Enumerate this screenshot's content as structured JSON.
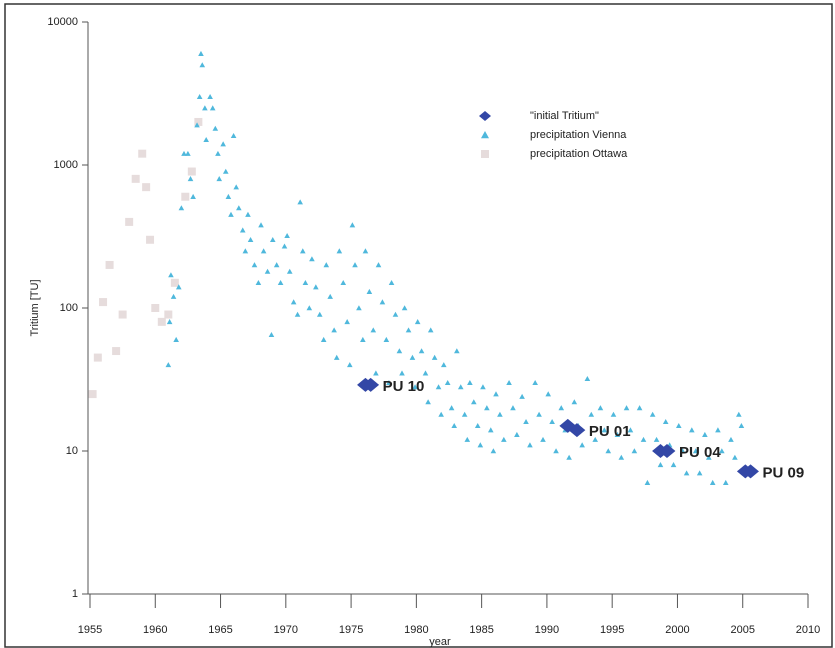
{
  "chart_data": {
    "type": "scatter",
    "xlabel": "year",
    "ylabel": "Tritium [TU]",
    "xlim": [
      1955,
      2010
    ],
    "xticks": [
      1955,
      1960,
      1965,
      1970,
      1975,
      1980,
      1985,
      1990,
      1995,
      2000,
      2005,
      2010
    ],
    "ylim": [
      1,
      10000
    ],
    "yticks": [
      1,
      10,
      100,
      1000,
      10000
    ],
    "yscale": "log",
    "series": [
      {
        "name": "\"initial Tritium\"",
        "color": "#3347a6",
        "marker": "diamond",
        "x": [
          1976.1,
          1976.5,
          1991.6,
          1992.3,
          1998.7,
          1999.2,
          2005.2,
          2005.6
        ],
        "values": [
          29,
          29,
          15,
          14,
          10,
          10,
          7.2,
          7.2
        ],
        "labels": [
          null,
          "PU 10",
          null,
          "PU 01",
          null,
          "PU 04",
          null,
          "PU 09"
        ]
      },
      {
        "name": "precipitation Vienna",
        "color": "#4fb8dc",
        "marker": "triangle",
        "x": [
          1961.0,
          1961.1,
          1961.2,
          1961.4,
          1961.6,
          1961.8,
          1962.0,
          1962.2,
          1962.5,
          1962.7,
          1962.9,
          1963.2,
          1963.4,
          1963.5,
          1963.6,
          1963.8,
          1963.9,
          1964.2,
          1964.4,
          1964.6,
          1964.8,
          1964.9,
          1965.2,
          1965.4,
          1965.6,
          1965.8,
          1966.0,
          1966.2,
          1966.4,
          1966.7,
          1966.9,
          1967.1,
          1967.3,
          1967.6,
          1967.9,
          1968.1,
          1968.3,
          1968.6,
          1968.9,
          1969.0,
          1969.3,
          1969.6,
          1969.9,
          1970.1,
          1970.3,
          1970.6,
          1970.9,
          1971.1,
          1971.3,
          1971.5,
          1971.8,
          1972.0,
          1972.3,
          1972.6,
          1972.9,
          1973.1,
          1973.4,
          1973.7,
          1973.9,
          1974.1,
          1974.4,
          1974.7,
          1974.9,
          1975.1,
          1975.3,
          1975.6,
          1975.9,
          1976.1,
          1976.4,
          1976.7,
          1976.9,
          1977.1,
          1977.4,
          1977.7,
          1977.9,
          1978.1,
          1978.4,
          1978.7,
          1978.9,
          1979.1,
          1979.4,
          1979.7,
          1979.9,
          1980.1,
          1980.4,
          1980.7,
          1980.9,
          1981.1,
          1981.4,
          1981.7,
          1981.9,
          1982.1,
          1982.4,
          1982.7,
          1982.9,
          1983.1,
          1983.4,
          1983.7,
          1983.9,
          1984.1,
          1984.4,
          1984.7,
          1984.9,
          1985.1,
          1985.4,
          1985.7,
          1985.9,
          1986.1,
          1986.4,
          1986.7,
          1987.1,
          1987.4,
          1987.7,
          1988.1,
          1988.4,
          1988.7,
          1989.1,
          1989.4,
          1989.7,
          1990.1,
          1990.4,
          1990.7,
          1991.1,
          1991.4,
          1991.7,
          1992.1,
          1992.4,
          1992.7,
          1993.1,
          1993.4,
          1993.7,
          1994.1,
          1994.4,
          1994.7,
          1995.1,
          1995.4,
          1995.7,
          1996.1,
          1996.4,
          1996.7,
          1997.1,
          1997.4,
          1997.7,
          1998.1,
          1998.4,
          1998.7,
          1999.1,
          1999.4,
          1999.7,
          2000.1,
          2000.4,
          2000.7,
          2001.1,
          2001.4,
          2001.7,
          2002.1,
          2002.4,
          2002.7,
          2003.1,
          2003.4,
          2003.7,
          2004.1,
          2004.4,
          2004.7,
          2004.9
        ],
        "values": [
          40,
          80,
          170,
          120,
          60,
          140,
          500,
          1200,
          1200,
          800,
          600,
          1900,
          3000,
          6000,
          5000,
          2500,
          1500,
          3000,
          2500,
          1800,
          1200,
          800,
          1400,
          900,
          600,
          450,
          1600,
          700,
          500,
          350,
          250,
          450,
          300,
          200,
          150,
          380,
          250,
          180,
          65,
          300,
          200,
          150,
          270,
          320,
          180,
          110,
          90,
          550,
          250,
          150,
          100,
          220,
          140,
          90,
          60,
          200,
          120,
          70,
          45,
          250,
          150,
          80,
          40,
          380,
          200,
          100,
          60,
          250,
          130,
          70,
          35,
          200,
          110,
          60,
          30,
          150,
          90,
          50,
          35,
          100,
          70,
          45,
          28,
          80,
          50,
          35,
          22,
          70,
          45,
          28,
          18,
          40,
          30,
          20,
          15,
          50,
          28,
          18,
          12,
          30,
          22,
          15,
          11,
          28,
          20,
          14,
          10,
          25,
          18,
          12,
          30,
          20,
          13,
          24,
          16,
          11,
          30,
          18,
          12,
          25,
          16,
          10,
          20,
          14,
          9,
          22,
          15,
          11,
          32,
          18,
          12,
          20,
          14,
          10,
          18,
          13,
          9,
          20,
          14,
          10,
          20,
          12,
          6,
          18,
          12,
          8,
          16,
          11,
          8,
          15,
          10,
          7,
          14,
          10,
          7,
          13,
          9,
          6,
          14,
          10,
          6,
          12,
          9,
          18,
          15
        ]
      },
      {
        "name": "precipitation Ottawa",
        "color": "#e6dcdc",
        "marker": "square",
        "x": [
          1955.2,
          1955.6,
          1956.0,
          1956.5,
          1957.0,
          1957.5,
          1958.0,
          1958.5,
          1959.0,
          1959.3,
          1959.6,
          1960.0,
          1960.5,
          1961.0,
          1961.5,
          1962.3,
          1962.8,
          1963.3
        ],
        "values": [
          25,
          45,
          110,
          200,
          50,
          90,
          400,
          800,
          1200,
          700,
          300,
          100,
          80,
          90,
          150,
          600,
          900,
          2000
        ]
      }
    ],
    "legend": "upper-right"
  }
}
